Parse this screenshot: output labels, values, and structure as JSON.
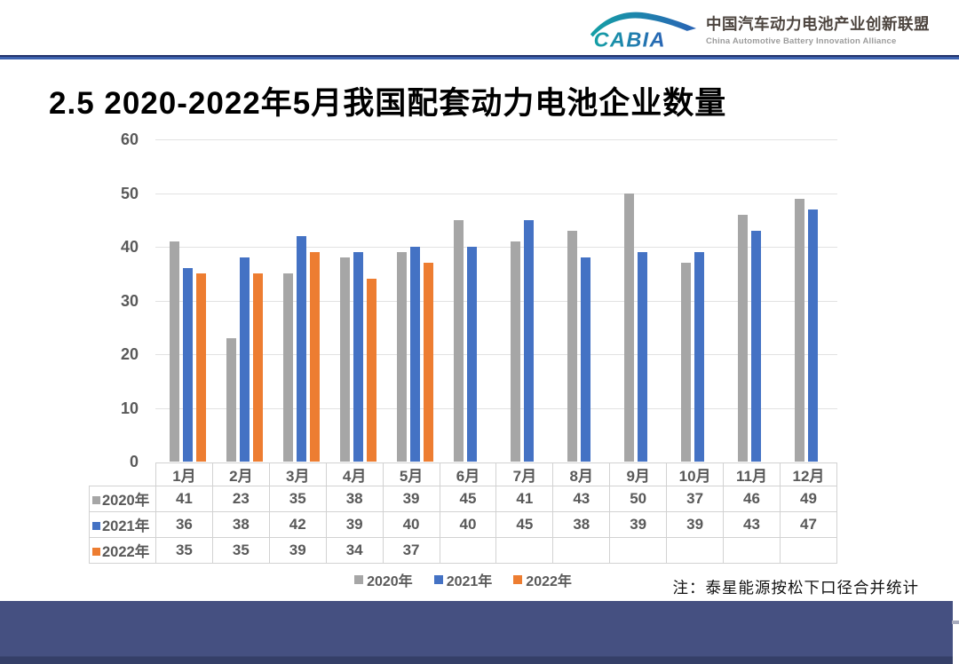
{
  "header": {
    "logo_text": "CABIA",
    "org_name_cn": "中国汽车动力电池产业创新联盟",
    "org_name_en": "China Automotive Battery Innovation Alliance"
  },
  "title": "2.5 2020-2022年5月我国配套动力电池企业数量",
  "chart_data": {
    "type": "bar",
    "categories": [
      "1月",
      "2月",
      "3月",
      "4月",
      "5月",
      "6月",
      "7月",
      "8月",
      "9月",
      "10月",
      "11月",
      "12月"
    ],
    "series": [
      {
        "name": "2020年",
        "color": "#a6a6a6",
        "values": [
          41,
          23,
          35,
          38,
          39,
          45,
          41,
          43,
          50,
          37,
          46,
          49
        ]
      },
      {
        "name": "2021年",
        "color": "#4472c4",
        "values": [
          36,
          38,
          42,
          39,
          40,
          40,
          45,
          38,
          39,
          39,
          43,
          47
        ]
      },
      {
        "name": "2022年",
        "color": "#ed7d31",
        "values": [
          35,
          35,
          39,
          34,
          37,
          null,
          null,
          null,
          null,
          null,
          null,
          null
        ]
      }
    ],
    "title": "2.5 2020-2022年5月我国配套动力电池企业数量",
    "xlabel": "",
    "ylabel": "",
    "ylim": [
      0,
      60
    ],
    "yticks": [
      0,
      10,
      20,
      30,
      40,
      50,
      60
    ],
    "grid": true,
    "legend_position": "bottom",
    "data_table_shown": true
  },
  "footnote": "注：泰星能源按松下口径合并统计",
  "colors": {
    "bar_2020": "#a6a6a6",
    "bar_2021": "#4472c4",
    "bar_2022": "#ed7d31",
    "header_line_dark": "#24346c",
    "header_line_blue": "#3d63b0",
    "gridline": "#e2e2e2",
    "table_border": "#d2d2d2",
    "axis_text": "#595959",
    "bottom_bar": "#455081",
    "bottom_bar_edge": "#353f68",
    "logo_teal": "#14a0a5",
    "logo_blue": "#2a63b5"
  }
}
